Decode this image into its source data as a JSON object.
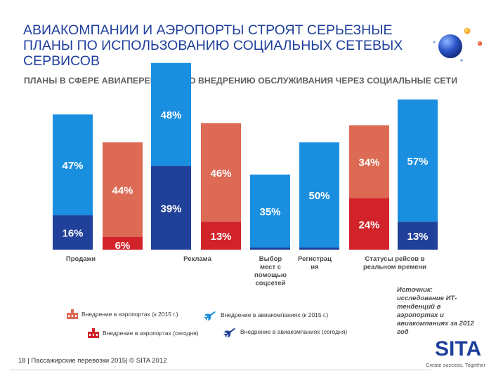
{
  "header": {
    "title": "АВИАКОМПАНИИ И АЭРОПОРТЫ СТРОЯТ СЕРЬЕЗНЫЕ ПЛАНЫ ПО ИСПОЛЬЗОВАНИЮ СОЦИАЛЬНЫХ СЕТЕВЫХ СЕРВИСОВ",
    "subtitle": "ПЛАНЫ В СФЕРЕ АВИАПЕРЕВОЗОК ПО ВНЕДРЕНИЮ ОБСЛУЖИВАНИЯ ЧЕРЕЗ СОЦИАЛЬНЫЕ СЕТИ"
  },
  "colors": {
    "airline_2015": "#1a8fe0",
    "airline_today": "#21409a",
    "airport_2015": "#dc6a55",
    "airport_today": "#d2232a",
    "title": "#1f3f9c"
  },
  "chart_data": {
    "type": "bar",
    "stacked": true,
    "groups": [
      {
        "label": "Продажи",
        "bars": [
          {
            "entity": "airline",
            "today": 16,
            "by_2015": 47
          },
          {
            "entity": "airport",
            "today": 6,
            "by_2015": 44
          }
        ]
      },
      {
        "label": "Реклама",
        "bars": [
          {
            "entity": "airline",
            "today": 39,
            "by_2015": 48
          },
          {
            "entity": "airport",
            "today": 13,
            "by_2015": 46
          }
        ]
      },
      {
        "label": "Выбор мест с помощью соцсетей",
        "bars": [
          {
            "entity": "airline",
            "today": null,
            "by_2015": 35
          }
        ]
      },
      {
        "label": "Регистрация",
        "bars": [
          {
            "entity": "airline",
            "today": null,
            "by_2015": 50
          }
        ]
      },
      {
        "label": "Статусы рейсов в реальном времени",
        "bars": [
          {
            "entity": "airport",
            "today": 24,
            "by_2015": 34
          },
          {
            "entity": "airline",
            "today": 13,
            "by_2015": 57
          }
        ]
      }
    ],
    "category_labels": [
      [
        "Продажи"
      ],
      [
        "Реклама"
      ],
      [
        "Выбор",
        "мест с",
        "помощью",
        "соцсетей"
      ],
      [
        "Регистрац",
        "ия"
      ],
      [
        "Статусы рейсов в",
        "реальном времени"
      ]
    ],
    "legend": [
      {
        "key": "airport_2015",
        "label": "Внедрение в аэропортах (к 2015 г.)",
        "icon": "airport-building-icon"
      },
      {
        "key": "airline_2015",
        "label": "Внедрение в авиакомпаниях (к 2015 г.)",
        "icon": "airplane-icon"
      },
      {
        "key": "airport_today",
        "label": "Внедрение в аэропортах (сегодня)",
        "icon": "airport-building-icon"
      },
      {
        "key": "airline_today",
        "label": "Внедрение в авиакомпаниях (сегодня)",
        "icon": "airplane-icon"
      }
    ],
    "unit": "%"
  },
  "source": "Источник: исследование ИТ-тенденций в аэропортах и авиакомпаниях за 2012 год",
  "footer": {
    "page": "18",
    "text": "| Пассажирские перевозки 2015| © SITA 2012"
  },
  "brand": {
    "logo": "SITA",
    "tagline": "Create success. Together"
  }
}
